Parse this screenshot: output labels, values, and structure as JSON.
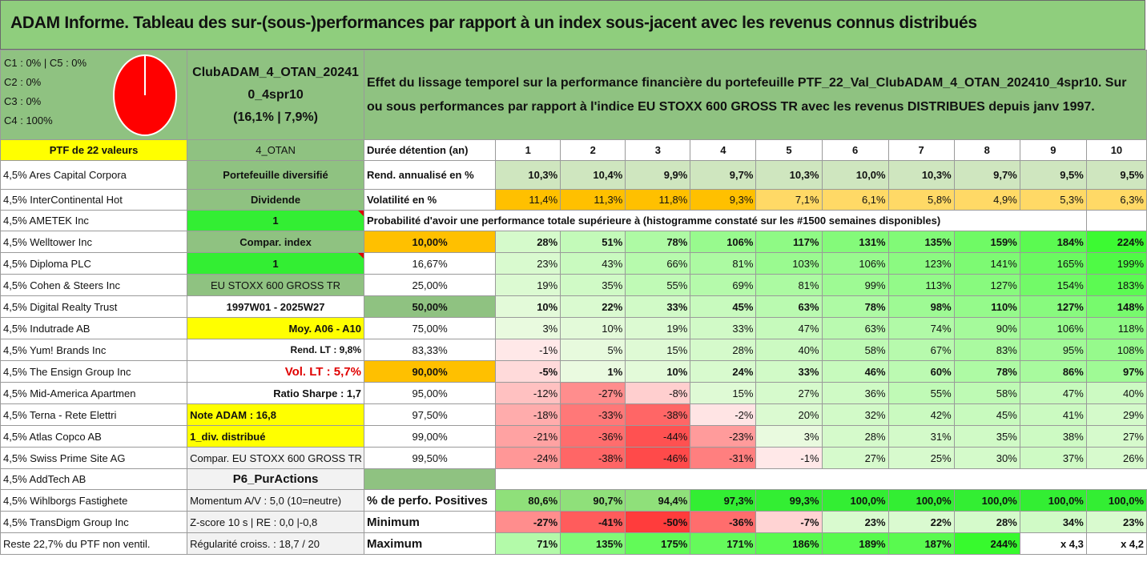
{
  "title": "ADAM Informe. Tableau des sur-(sous-)performances par rapport à un index sous-jacent avec les revenus connus distribués",
  "top": {
    "cats": [
      "C1 : 0% | C5 : 0%",
      "C2 : 0%",
      "C3 : 0%",
      "C4 : 100%"
    ],
    "pie_color": "#ff0000",
    "portfolio_name": "ClubADAM_4_OTAN_20241 0_4spr10",
    "portfolio_name_l1": "ClubADAM_4_OTAN_20241",
    "portfolio_name_l2": "0_4spr10",
    "portfolio_pct": "(16,1% | 7,9%)",
    "desc": "Effet du lissage temporel sur la performance financière du portefeuille PTF_22_Val_ClubADAM_4_OTAN_202410_4spr10. Sur ou sous performances par rapport à l'indice EU STOXX 600 GROSS TR avec les revenus DISTRIBUES depuis janv 1997."
  },
  "ptf_label": "PTF de 22 valeurs",
  "otan": "4_OTAN",
  "holdings": [
    "4,5% Ares Capital Corpora",
    "4,5% InterContinental Hot",
    "4,5% AMETEK Inc",
    "4,5% Welltower Inc",
    "4,5% Diploma PLC",
    "4,5% Cohen & Steers Inc",
    "4,5% Digital Realty Trust",
    "4,5% Indutrade AB",
    "4,5% Yum! Brands Inc",
    "4,5% The Ensign Group Inc",
    "4,5% Mid-America Apartmen",
    "4,5% Terna - Rete Elettri",
    "4,5% Atlas Copco AB",
    "4,5% Swiss Prime Site AG",
    "4,5% AddTech AB",
    "4,5% Wihlborgs Fastighete",
    "4,5% TransDigm Group Inc",
    "Reste 22,7% du PTF non ventil."
  ],
  "info": [
    "Portefeuille diversifié",
    "Dividende",
    "1",
    "Compar. index",
    "1",
    "EU STOXX 600 GROSS TR",
    "1997W01 - 2025W27",
    "Moy. A06 - A10",
    "Rend. LT : 9,8%",
    "Vol. LT : 5,7%",
    "Ratio Sharpe : 1,7",
    "Note ADAM : 16,8",
    "1_div. distribué",
    "Compar. EU STOXX 600 GROSS TR",
    "P6_PurActions",
    "Momentum A/V : 5,0 (10=neutre)",
    "Z-score 10 s | RE : 0,0 |-0,8",
    "Régularité croiss. : 18,7 / 20"
  ],
  "duration_label": "Durée détention (an)",
  "years": [
    "1",
    "2",
    "3",
    "4",
    "5",
    "6",
    "7",
    "8",
    "9",
    "10"
  ],
  "rend_label": "Rend. annualisé en %",
  "rend": [
    "10,3%",
    "10,4%",
    "9,9%",
    "9,7%",
    "10,3%",
    "10,0%",
    "10,3%",
    "9,7%",
    "9,5%",
    "9,5%"
  ],
  "vol_label": "Volatilité en %",
  "vol": [
    "11,4%",
    "11,3%",
    "11,8%",
    "9,3%",
    "7,1%",
    "6,1%",
    "5,8%",
    "4,9%",
    "5,3%",
    "6,3%"
  ],
  "prob_label": "Probabilité d'avoir une performance totale supérieure à (histogramme constaté sur les #1500 semaines disponibles)",
  "prob_rows": [
    {
      "p": "10,00%",
      "v": [
        "28%",
        "51%",
        "78%",
        "106%",
        "117%",
        "131%",
        "135%",
        "159%",
        "184%",
        "224%"
      ]
    },
    {
      "p": "16,67%",
      "v": [
        "23%",
        "43%",
        "66%",
        "81%",
        "103%",
        "106%",
        "123%",
        "141%",
        "165%",
        "199%"
      ]
    },
    {
      "p": "25,00%",
      "v": [
        "19%",
        "35%",
        "55%",
        "69%",
        "81%",
        "99%",
        "113%",
        "127%",
        "154%",
        "183%"
      ]
    },
    {
      "p": "50,00%",
      "v": [
        "10%",
        "22%",
        "33%",
        "45%",
        "63%",
        "78%",
        "98%",
        "110%",
        "127%",
        "148%"
      ]
    },
    {
      "p": "75,00%",
      "v": [
        "3%",
        "10%",
        "19%",
        "33%",
        "47%",
        "63%",
        "74%",
        "90%",
        "106%",
        "118%"
      ]
    },
    {
      "p": "83,33%",
      "v": [
        "-1%",
        "5%",
        "15%",
        "28%",
        "40%",
        "58%",
        "67%",
        "83%",
        "95%",
        "108%"
      ]
    },
    {
      "p": "90,00%",
      "v": [
        "-5%",
        "1%",
        "10%",
        "24%",
        "33%",
        "46%",
        "60%",
        "78%",
        "86%",
        "97%"
      ]
    },
    {
      "p": "95,00%",
      "v": [
        "-12%",
        "-27%",
        "-8%",
        "15%",
        "27%",
        "36%",
        "55%",
        "58%",
        "47%",
        "40%"
      ]
    },
    {
      "p": "97,50%",
      "v": [
        "-18%",
        "-33%",
        "-38%",
        "-2%",
        "20%",
        "32%",
        "42%",
        "45%",
        "41%",
        "29%"
      ]
    },
    {
      "p": "99,00%",
      "v": [
        "-21%",
        "-36%",
        "-44%",
        "-23%",
        "3%",
        "28%",
        "31%",
        "35%",
        "38%",
        "27%"
      ]
    },
    {
      "p": "99,50%",
      "v": [
        "-24%",
        "-38%",
        "-46%",
        "-31%",
        "-1%",
        "27%",
        "25%",
        "30%",
        "37%",
        "26%"
      ]
    }
  ],
  "pos_label": "% de perfo. Positives",
  "pos": [
    "80,6%",
    "90,7%",
    "94,4%",
    "97,3%",
    "99,3%",
    "100,0%",
    "100,0%",
    "100,0%",
    "100,0%",
    "100,0%"
  ],
  "min_label": "Minimum",
  "min": [
    "-27%",
    "-41%",
    "-50%",
    "-36%",
    "-7%",
    "23%",
    "22%",
    "28%",
    "34%",
    "23%"
  ],
  "max_label": "Maximum",
  "max": [
    "71%",
    "135%",
    "175%",
    "171%",
    "186%",
    "189%",
    "187%",
    "244%",
    "x 4,3",
    "x 4,2"
  ]
}
